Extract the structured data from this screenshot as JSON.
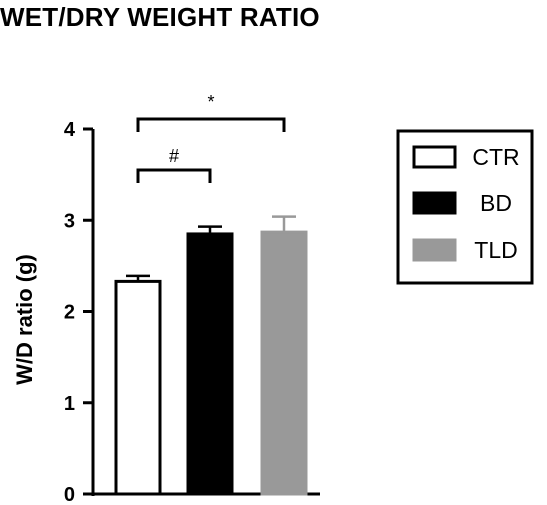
{
  "title": "WET/DRY WEIGHT RATIO",
  "chart_data": {
    "type": "bar",
    "categories": [
      "CTR",
      "BD",
      "TLD"
    ],
    "series": [
      {
        "category": "CTR",
        "value": 2.33,
        "error": 0.06,
        "color": "#ffffff"
      },
      {
        "category": "BD",
        "value": 2.85,
        "error": 0.08,
        "color": "#000000"
      },
      {
        "category": "TLD",
        "value": 2.87,
        "error": 0.17,
        "color": "#999999"
      }
    ],
    "ylabel": "W/D ratio (g)",
    "ylim": [
      0,
      4
    ],
    "yticks": [
      "0",
      "1",
      "2",
      "3",
      "4"
    ],
    "grid": false,
    "legend": {
      "position": "right",
      "entries": [
        {
          "label": "CTR",
          "color": "#ffffff"
        },
        {
          "label": "BD",
          "color": "#000000"
        },
        {
          "label": "TLD",
          "color": "#999999"
        }
      ]
    },
    "annotations": [
      {
        "text": "#",
        "from": "CTR",
        "to": "BD",
        "level": 3.6
      },
      {
        "text": "*",
        "from": "CTR",
        "to": "TLD",
        "level": 4.1
      }
    ]
  }
}
